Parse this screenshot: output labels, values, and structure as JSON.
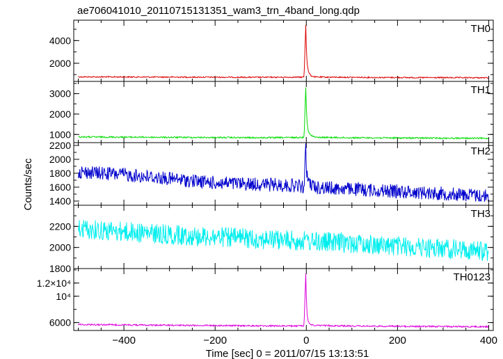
{
  "chart_data": {
    "type": "line",
    "title": "ae706041010_20110715131351_wam3_trn_4band_long.qdp",
    "xlabel": "Time [sec] 0 = 2011/07/15 13:13:51",
    "ylabel": "Counts/sec",
    "xlim": [
      -510,
      410
    ],
    "x_ticks": [
      -400,
      -200,
      0,
      200,
      400
    ],
    "x_tick_labels": [
      "−400",
      "−200",
      "0",
      "200",
      "400"
    ],
    "panels": [
      {
        "name": "TH0",
        "color": "#dd0000",
        "ylim": [
          400,
          5800
        ],
        "y_ticks": [
          2000,
          4000
        ],
        "y_tick_labels": [
          "2000",
          "4000"
        ],
        "x": [
          -500,
          -400,
          -300,
          -200,
          -100,
          -20,
          -5,
          -1,
          0,
          2,
          5,
          10,
          20,
          100,
          200,
          300,
          400
        ],
        "y": [
          800,
          790,
          780,
          770,
          760,
          770,
          780,
          5700,
          3300,
          1900,
          1200,
          900,
          780,
          760,
          740,
          730,
          720
        ]
      },
      {
        "name": "TH1",
        "color": "#00dd00",
        "ylim": [
          600,
          3600
        ],
        "y_ticks": [
          1000,
          2000,
          3000
        ],
        "y_tick_labels": [
          "1000",
          "2000",
          "3000"
        ],
        "x": [
          -500,
          -400,
          -300,
          -200,
          -100,
          -20,
          -5,
          -1,
          0,
          2,
          5,
          10,
          20,
          100,
          200,
          300,
          400
        ],
        "y": [
          880,
          870,
          860,
          850,
          840,
          850,
          860,
          3500,
          2300,
          1500,
          1100,
          950,
          860,
          840,
          830,
          820,
          810
        ]
      },
      {
        "name": "TH2",
        "color": "#0000cc",
        "ylim": [
          1340,
          2240
        ],
        "y_ticks": [
          1400,
          1600,
          1800,
          2000,
          2200
        ],
        "y_tick_labels": [
          "1400",
          "1600",
          "1800",
          "2000",
          "2200"
        ],
        "x": [
          -500,
          -400,
          -300,
          -200,
          -100,
          -20,
          -5,
          -1,
          0,
          2,
          5,
          10,
          20,
          100,
          200,
          300,
          400
        ],
        "y": [
          1820,
          1780,
          1720,
          1660,
          1640,
          1620,
          1600,
          2200,
          1900,
          1750,
          1680,
          1640,
          1600,
          1570,
          1540,
          1510,
          1470
        ]
      },
      {
        "name": "TH3",
        "color": "#00eeee",
        "ylim": [
          1800,
          2400
        ],
        "y_ticks": [
          1800,
          2000,
          2200
        ],
        "y_tick_labels": [
          "1800",
          "2000",
          "2200"
        ],
        "x": [
          -500,
          -400,
          -300,
          -200,
          -100,
          0,
          100,
          200,
          300,
          400
        ],
        "y": [
          2180,
          2150,
          2120,
          2100,
          2080,
          2060,
          2040,
          2010,
          1990,
          1960
        ]
      },
      {
        "name": "TH0123",
        "color": "#dd00dd",
        "ylim": [
          4800,
          14200
        ],
        "y_ticks": [
          6000,
          10000,
          12000
        ],
        "y_tick_labels": [
          "6000",
          "10⁴",
          "1.2×10⁴"
        ],
        "x": [
          -500,
          -400,
          -300,
          -200,
          -100,
          -20,
          -5,
          -1,
          0,
          2,
          5,
          10,
          20,
          100,
          200,
          300,
          400
        ],
        "y": [
          5700,
          5650,
          5600,
          5550,
          5500,
          5480,
          5500,
          14000,
          9500,
          7000,
          6000,
          5700,
          5550,
          5480,
          5430,
          5400,
          5370
        ]
      }
    ]
  }
}
